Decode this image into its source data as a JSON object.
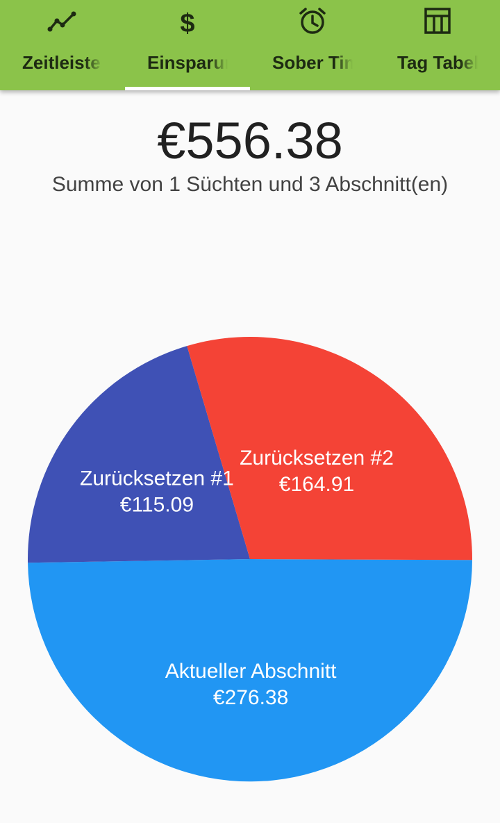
{
  "tabs": [
    {
      "label": "Zeitleiste",
      "icon": "trending-line-icon",
      "selected": false
    },
    {
      "label": "Einsparungen",
      "icon": "dollar-icon",
      "selected": true
    },
    {
      "label": "Sober Time",
      "icon": "alarm-clock-icon",
      "selected": false
    },
    {
      "label": "Tag Tabelle",
      "icon": "table-icon",
      "selected": false
    }
  ],
  "summary": {
    "total": "€556.38",
    "subtitle": "Summe von 1 Süchten und 3 Abschnitt(en)"
  },
  "colors": {
    "toolbar": "#8bc34a",
    "current": "#2196f3",
    "reset1": "#3f51b5",
    "reset2": "#f44336"
  },
  "chart_data": {
    "type": "pie",
    "slices": [
      {
        "label": "Aktueller Abschnitt",
        "value": 276.38,
        "value_label": "€276.38",
        "color": "#2196f3"
      },
      {
        "label": "Zurücksetzen #1",
        "value": 115.09,
        "value_label": "€115.09",
        "color": "#3f51b5"
      },
      {
        "label": "Zurücksetzen #2",
        "value": 164.91,
        "value_label": "€164.91",
        "color": "#f44336"
      }
    ]
  }
}
